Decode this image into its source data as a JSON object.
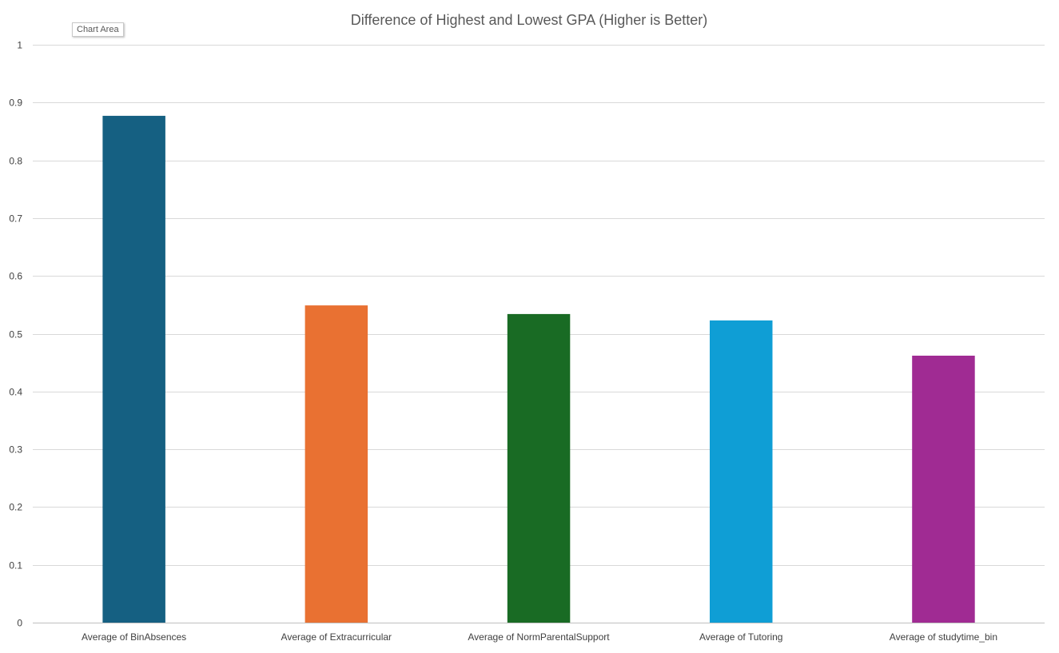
{
  "tooltip": {
    "text": "Chart Area"
  },
  "chart_data": {
    "type": "bar",
    "title": "Difference of Highest and Lowest GPA (Higher is Better)",
    "xlabel": "",
    "ylabel": "",
    "categories": [
      "Average of BinAbsences",
      "Average of Extracurricular",
      "Average of NormParentalSupport",
      "Average of Tutoring",
      "Average of studytime_bin"
    ],
    "values": [
      0.877,
      0.549,
      0.534,
      0.523,
      0.462
    ],
    "colors": [
      "#156082",
      "#E97132",
      "#196B24",
      "#0F9ED5",
      "#A02B93"
    ],
    "ylim": [
      0,
      1
    ],
    "yticks": [
      0,
      0.1,
      0.2,
      0.3,
      0.4,
      0.5,
      0.6,
      0.7,
      0.8,
      0.9,
      1
    ],
    "ytick_labels": [
      "0",
      "0.1",
      "0.2",
      "0.3",
      "0.4",
      "0.5",
      "0.6",
      "0.7",
      "0.8",
      "0.9",
      "1"
    ],
    "grid": true,
    "legend": "none"
  }
}
